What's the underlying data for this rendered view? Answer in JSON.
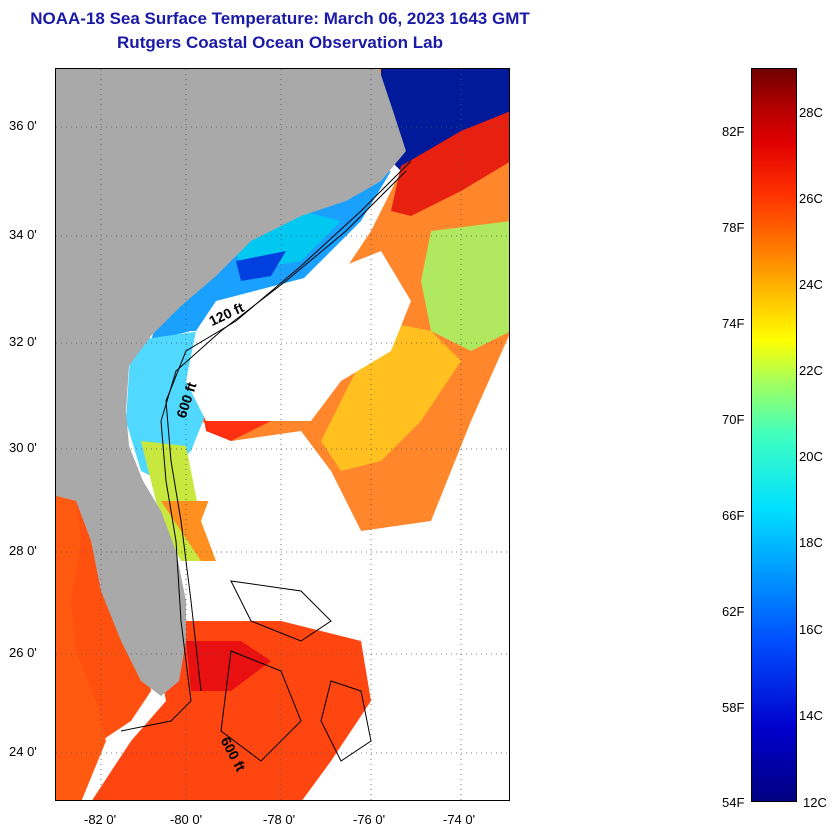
{
  "title": {
    "line1": "NOAA-18 Sea Surface Temperature:  March 06, 2023 1643 GMT",
    "line2": "Rutgers Coastal Ocean Observation Lab"
  },
  "map": {
    "lat_labels": [
      "36 0'",
      "34 0'",
      "32 0'",
      "30 0'",
      "28 0'",
      "26 0'",
      "24 0'"
    ],
    "lon_labels": [
      "-82 0'",
      "-80 0'",
      "-78 0'",
      "-76 0'",
      "-74 0'"
    ],
    "contour_labels": [
      "120 ft",
      "600 ft",
      "600 ft"
    ],
    "colors": {
      "land": "#a9a9a9",
      "cloud": "#ffffff",
      "warm": "#ff5a10",
      "cool": "#00b0ff"
    }
  },
  "colorbar": {
    "fahrenheit_labels": [
      "82F",
      "78F",
      "74F",
      "70F",
      "66F",
      "62F",
      "58F",
      "54F"
    ],
    "celsius_labels": [
      "28C",
      "26C",
      "24C",
      "22C",
      "20C",
      "18C",
      "16C",
      "14C",
      "12C"
    ]
  }
}
